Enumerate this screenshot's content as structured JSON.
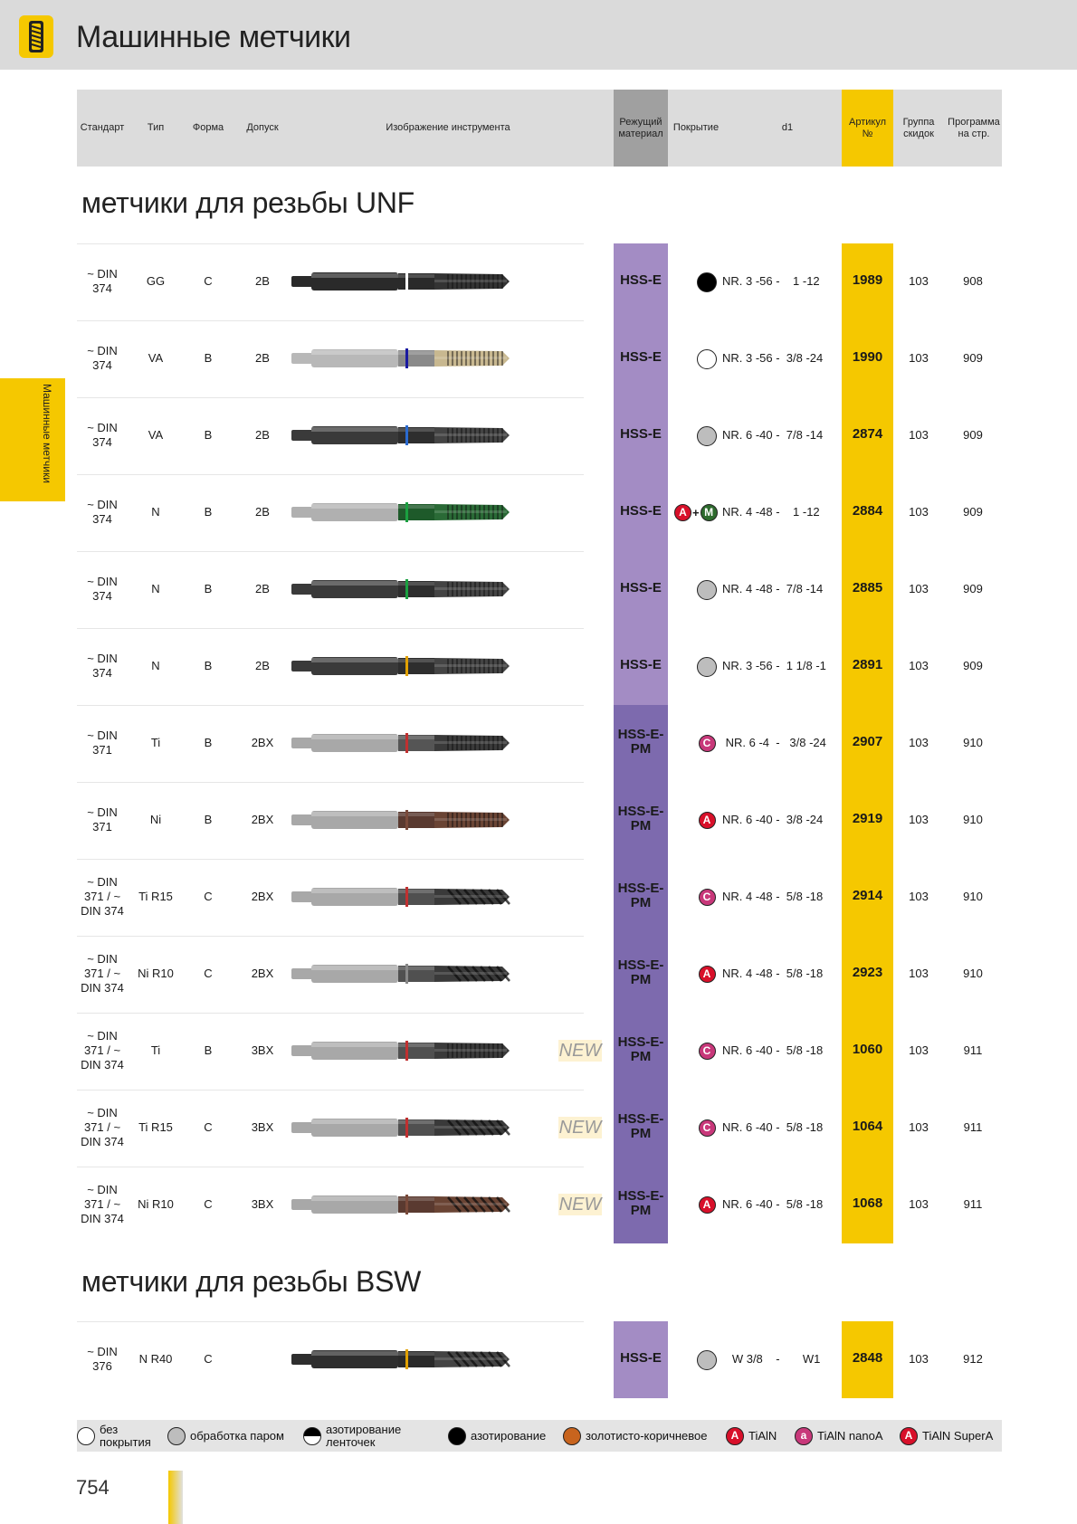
{
  "page": {
    "title": "Машинные метчики",
    "side_tab": "Машинные метчики",
    "page_number": "754"
  },
  "columns": {
    "standard": "Стандарт",
    "type": "Тип",
    "form": "Форма",
    "tolerance": "Допуск",
    "image": "Изображение инструмента",
    "material_1": "Режущий",
    "material_2": "материал",
    "coating": "Покрытие",
    "d1": "d1",
    "article_1": "Артикул",
    "article_2": "№",
    "discount_1": "Группа",
    "discount_2": "скидок",
    "program_1": "Программа",
    "program_2": "на стр."
  },
  "sections": [
    {
      "title": "метчики для  резьбы UNF",
      "rows": [
        {
          "std": [
            "~ DIN",
            "374"
          ],
          "type": "GG",
          "form": "C",
          "tol": "2B",
          "material": [
            "HSS-E"
          ],
          "coating": "black",
          "d1": "NR. 3 -56 -    1 -12",
          "article": "1989",
          "group": "103",
          "program": "908",
          "new": "",
          "band": "#f0f0f0",
          "shank": "#2a2a2a",
          "body": "#2a2a2a",
          "thread": "#333333",
          "ring": "#ffffff",
          "spiral": false
        },
        {
          "std": [
            "~ DIN",
            "374"
          ],
          "type": "VA",
          "form": "B",
          "tol": "2B",
          "material": [
            "HSS-E"
          ],
          "coating": "white",
          "d1": "NR. 3 -56 -  3/8 -24",
          "article": "1990",
          "group": "103",
          "program": "909",
          "new": "",
          "band": "#1a1aa0",
          "shank": "#b8b8b8",
          "body": "#8a8a8a",
          "thread": "#c8b890",
          "ring": "#1a1aa0",
          "spiral": false
        },
        {
          "std": [
            "~ DIN",
            "374"
          ],
          "type": "VA",
          "form": "B",
          "tol": "2B",
          "material": [
            "HSS-E"
          ],
          "coating": "grey",
          "d1": "NR. 6 -40 -  7/8 -14",
          "article": "2874",
          "group": "103",
          "program": "909",
          "new": "",
          "band": "#2a6ad0",
          "shank": "#3a3a3a",
          "body": "#2e2e2e",
          "thread": "#444444",
          "ring": "#2a6ad0",
          "spiral": false
        },
        {
          "std": [
            "~ DIN",
            "374"
          ],
          "type": "N",
          "form": "B",
          "tol": "2B",
          "material": [
            "HSS-E"
          ],
          "coating": "a+m",
          "d1": "NR. 4 -48 -    1 -12",
          "article": "2884",
          "group": "103",
          "program": "909",
          "new": "",
          "band": "#1aa040",
          "shank": "#b0b0b0",
          "body": "#1e5a2a",
          "thread": "#2a6a36",
          "ring": "#1aa040",
          "spiral": false
        },
        {
          "std": [
            "~ DIN",
            "374"
          ],
          "type": "N",
          "form": "B",
          "tol": "2B",
          "material": [
            "HSS-E"
          ],
          "coating": "grey",
          "d1": "NR. 4 -48 -  7/8 -14",
          "article": "2885",
          "group": "103",
          "program": "909",
          "new": "",
          "band": "#1aa040",
          "shank": "#3a3a3a",
          "body": "#2e2e2e",
          "thread": "#444444",
          "ring": "#1aa040",
          "spiral": false
        },
        {
          "std": [
            "~ DIN",
            "374"
          ],
          "type": "N",
          "form": "B",
          "tol": "2B",
          "material": [
            "HSS-E"
          ],
          "coating": "grey",
          "d1": "NR. 3 -56 -  1 1/8 -1",
          "article": "2891",
          "group": "103",
          "program": "909",
          "new": "",
          "band": "#e0a000",
          "shank": "#3a3a3a",
          "body": "#2e2e2e",
          "thread": "#444444",
          "ring": "#e0a000",
          "spiral": false
        },
        {
          "std": [
            "~ DIN",
            "371"
          ],
          "type": "Ti",
          "form": "B",
          "tol": "2BX",
          "material": [
            "HSS-E-",
            "PM"
          ],
          "coating": "C",
          "d1": " NR. 6 -4  -   3/8 -24",
          "article": "2907",
          "group": "103",
          "program": "910",
          "new": "",
          "band": "#c03030",
          "shank": "#a8a8a8",
          "body": "#555555",
          "thread": "#3a3a3a",
          "ring": "#c03030",
          "spiral": false
        },
        {
          "std": [
            "~ DIN",
            "371"
          ],
          "type": "Ni",
          "form": "B",
          "tol": "2BX",
          "material": [
            "HSS-E-",
            "PM"
          ],
          "coating": "A",
          "d1": "NR. 6 -40 -  3/8 -24",
          "article": "2919",
          "group": "103",
          "program": "910",
          "new": "",
          "band": "#7a4a3a",
          "shank": "#a8a8a8",
          "body": "#5a3a30",
          "thread": "#6a4434",
          "ring": "#7a4a3a",
          "spiral": false
        },
        {
          "std": [
            "~ DIN",
            "371 / ~",
            "DIN 374"
          ],
          "type": "Ti R15",
          "form": "C",
          "tol": "2BX",
          "material": [
            "HSS-E-",
            "PM"
          ],
          "coating": "C",
          "d1": "NR. 4 -48 -  5/8 -18",
          "article": "2914",
          "group": "103",
          "program": "910",
          "new": "",
          "band": "#c03030",
          "shank": "#a8a8a8",
          "body": "#505050",
          "thread": "#3a3a3a",
          "ring": "#c03030",
          "spiral": true
        },
        {
          "std": [
            "~ DIN",
            "371 / ~",
            "DIN 374"
          ],
          "type": "Ni R10",
          "form": "C",
          "tol": "2BX",
          "material": [
            "HSS-E-",
            "PM"
          ],
          "coating": "A",
          "d1": "NR. 4 -48 -  5/8 -18",
          "article": "2923",
          "group": "103",
          "program": "910",
          "new": "",
          "band": "#888888",
          "shank": "#a8a8a8",
          "body": "#505050",
          "thread": "#3a3a3a",
          "ring": "#888888",
          "spiral": true
        },
        {
          "std": [
            "~ DIN",
            "371 / ~",
            "DIN 374"
          ],
          "type": "Ti",
          "form": "B",
          "tol": "3BX",
          "material": [
            "HSS-E-",
            "PM"
          ],
          "coating": "C",
          "d1": "NR. 6 -40 -  5/8 -18",
          "article": "1060",
          "group": "103",
          "program": "911",
          "new": "NEW",
          "band": "#c03030",
          "shank": "#a8a8a8",
          "body": "#505050",
          "thread": "#3a3a3a",
          "ring": "#c03030",
          "spiral": false
        },
        {
          "std": [
            "~ DIN",
            "371 / ~",
            "DIN 374"
          ],
          "type": "Ti R15",
          "form": "C",
          "tol": "3BX",
          "material": [
            "HSS-E-",
            "PM"
          ],
          "coating": "C",
          "d1": "NR. 6 -40 -  5/8 -18",
          "article": "1064",
          "group": "103",
          "program": "911",
          "new": "NEW",
          "band": "#c03030",
          "shank": "#a8a8a8",
          "body": "#505050",
          "thread": "#3a3a3a",
          "ring": "#c03030",
          "spiral": true
        },
        {
          "std": [
            "~ DIN",
            "371 / ~",
            "DIN 374"
          ],
          "type": "Ni R10",
          "form": "C",
          "tol": "3BX",
          "material": [
            "HSS-E-",
            "PM"
          ],
          "coating": "A",
          "d1": "NR. 6 -40 -  5/8 -18",
          "article": "1068",
          "group": "103",
          "program": "911",
          "new": "NEW",
          "band": "#7a4a3a",
          "shank": "#a8a8a8",
          "body": "#5a3a30",
          "thread": "#6a4434",
          "ring": "#7a4a3a",
          "spiral": true
        }
      ]
    },
    {
      "title": "метчики для  резьбы BSW",
      "rows": [
        {
          "std": [
            "~ DIN",
            "376"
          ],
          "type": "N R40",
          "form": "C",
          "tol": "",
          "material": [
            "HSS-E"
          ],
          "coating": "grey",
          "d1": "   W 3/8    -       W1",
          "article": "2848",
          "group": "103",
          "program": "912",
          "new": "",
          "band": "#e0a000",
          "shank": "#2e2e2e",
          "body": "#2a2a2a",
          "thread": "#444444",
          "ring": "#e0a000",
          "spiral": true
        }
      ]
    }
  ],
  "legend": [
    {
      "icon": "white",
      "text": [
        "без",
        "покрытия"
      ]
    },
    {
      "icon": "grey",
      "text": [
        "обработка паром"
      ]
    },
    {
      "icon": "half",
      "text": [
        "азотирование",
        "ленточек"
      ]
    },
    {
      "icon": "black",
      "text": [
        "азотирование"
      ]
    },
    {
      "icon": "brown",
      "text": [
        "золотисто-коричневое"
      ]
    },
    {
      "icon": "A",
      "text": [
        "TiAlN"
      ]
    },
    {
      "icon": "a",
      "text": [
        "TiAlN nanoA"
      ]
    },
    {
      "icon": "A",
      "text": [
        "TiAlN SuperA"
      ]
    }
  ],
  "colors": {
    "brand_yellow": "#f5c800",
    "hss_e": "#a38cc4",
    "hss_e_pm": "#7d6aae",
    "badge_magenta": "#c8387a",
    "badge_red": "#d8102a",
    "badge_m": "#2e6b2e"
  }
}
